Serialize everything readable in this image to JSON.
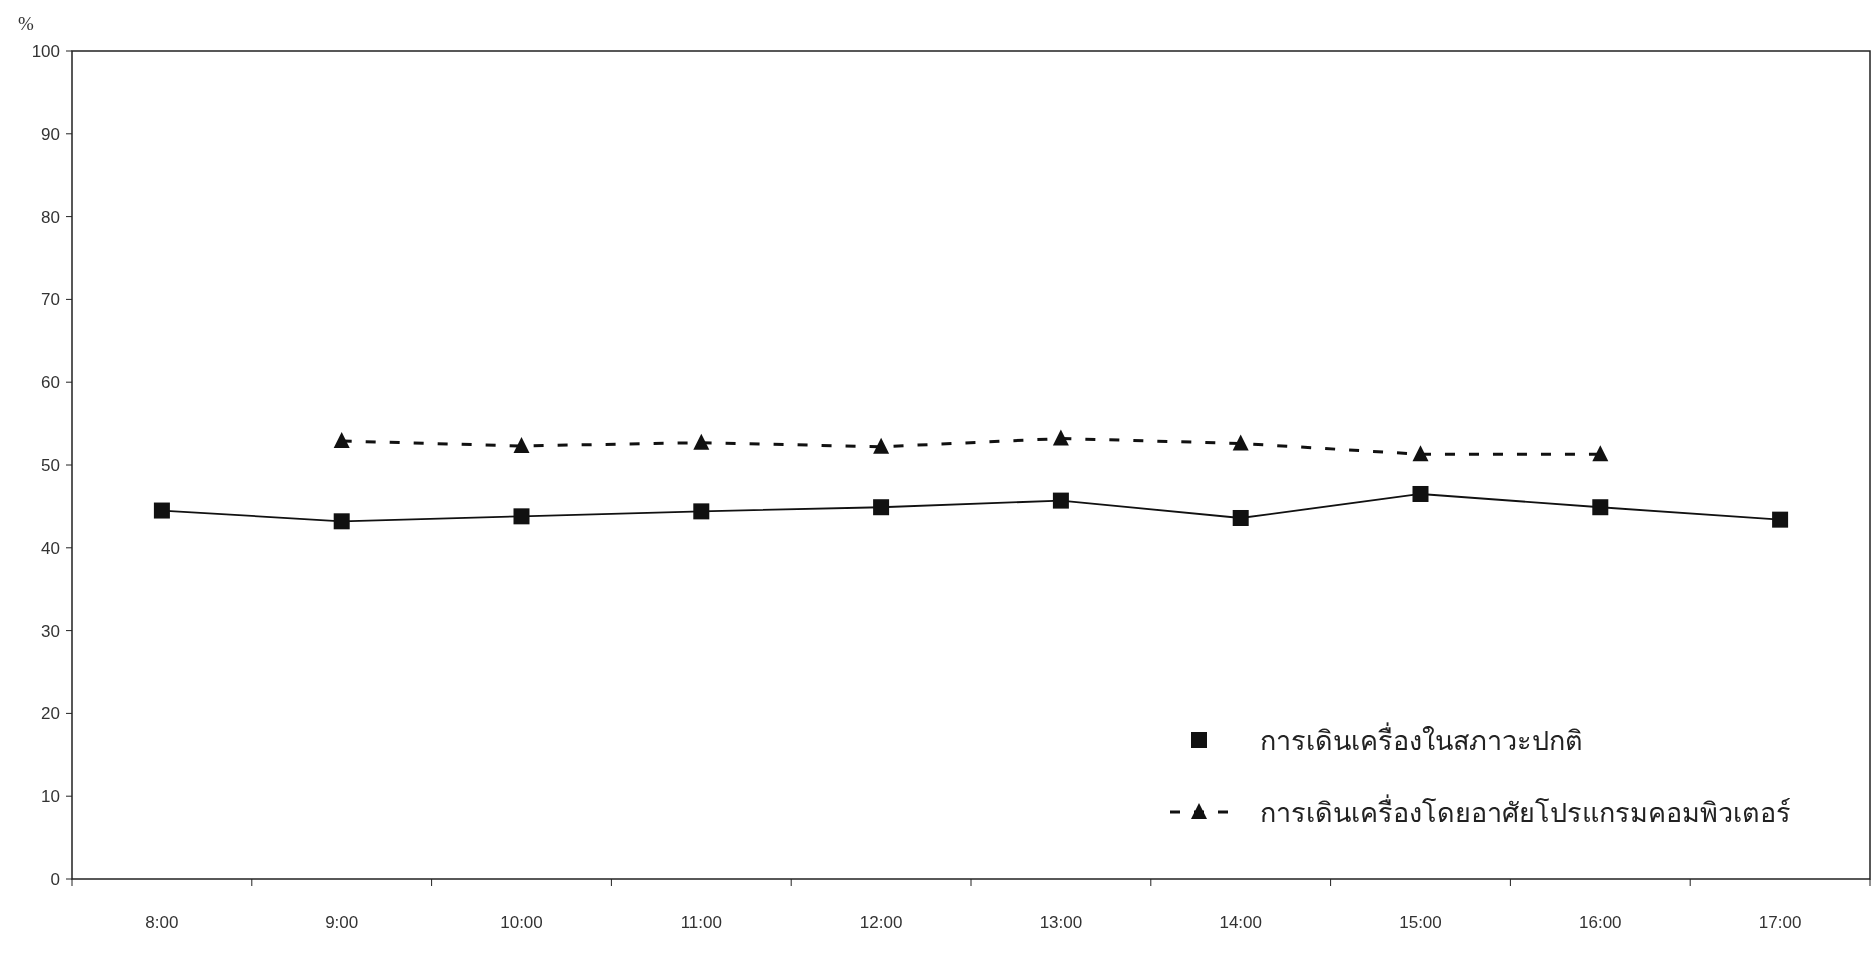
{
  "chart_data": {
    "type": "line",
    "ylabel": "%",
    "categories": [
      "8:00",
      "9:00",
      "10:00",
      "11:00",
      "12:00",
      "13:00",
      "14:00",
      "15:00",
      "16:00",
      "17:00"
    ],
    "series": [
      {
        "name": "การเดินเครื่องในสภาวะปกติ",
        "color": "#111111",
        "marker": "square",
        "line_style": "solid",
        "values": [
          44.5,
          43.2,
          43.8,
          44.4,
          44.9,
          45.7,
          43.6,
          46.5,
          44.9,
          43.4
        ]
      },
      {
        "name": "การเดินเครื่องโดยอาศัยโปรแกรมคอมพิวเตอร์",
        "color": "#111111",
        "marker": "triangle",
        "line_style": "dashed",
        "values": [
          null,
          52.9,
          52.3,
          52.7,
          52.2,
          53.2,
          52.6,
          51.3,
          51.3,
          null
        ]
      }
    ],
    "ylim": [
      0,
      100
    ],
    "yticks": [
      0,
      10,
      20,
      30,
      40,
      50,
      60,
      70,
      80,
      90,
      100
    ],
    "grid": false,
    "legend": "bottom right"
  }
}
